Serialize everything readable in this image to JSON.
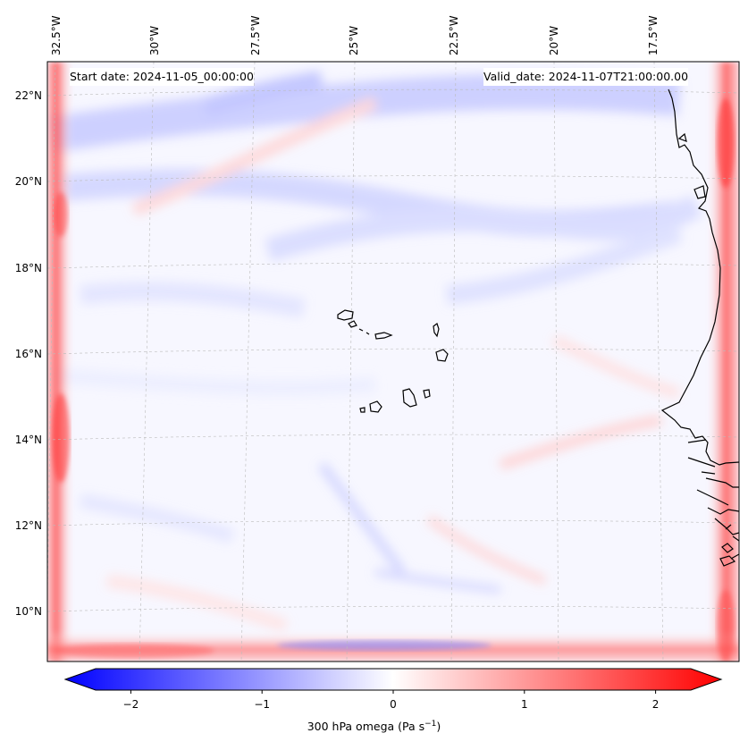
{
  "map": {
    "start_date_label": "Start date: 2024-11-05_00:00:00",
    "valid_date_label": "Valid_date: 2024-11-07T21:00:00.00",
    "longitude_labels": [
      "32.5°W",
      "30°W",
      "27.5°W",
      "25°W",
      "22.5°W",
      "20°W",
      "17.5°W"
    ],
    "latitude_labels": [
      "22°N",
      "20°N",
      "18°N",
      "16°N",
      "14°N",
      "12°N",
      "10°N"
    ],
    "field_colors": {
      "negative": "#0000ff",
      "zero": "#ffffff",
      "positive": "#ff0000"
    }
  },
  "colorbar": {
    "label_text": "300 hPa omega (Pa s",
    "label_unit_exponent": "−1",
    "label_close": ")",
    "ticks": [
      {
        "value": -2,
        "label": "−2"
      },
      {
        "value": -1,
        "label": "−1"
      },
      {
        "value": 0,
        "label": "0"
      },
      {
        "value": 1,
        "label": "1"
      },
      {
        "value": 2,
        "label": "2"
      }
    ],
    "range": [
      -2.5,
      2.5
    ],
    "extend": "both"
  }
}
